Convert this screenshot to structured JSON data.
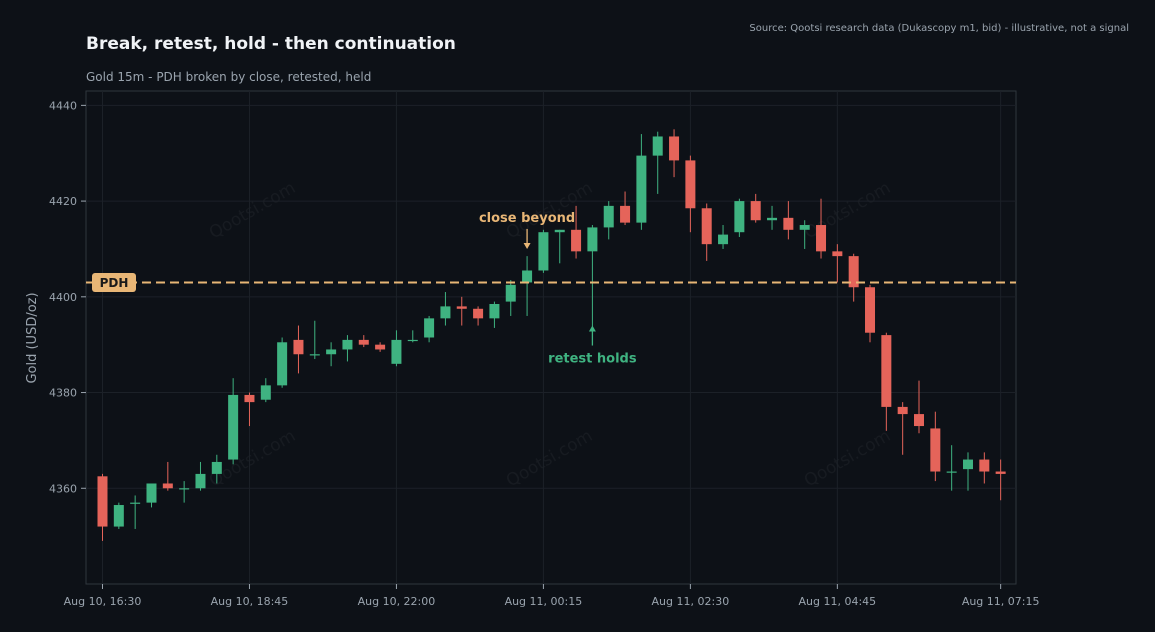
{
  "header": {
    "title": "Break, retest, hold - then continuation",
    "subtitle": "Gold 15m - PDH broken by close, retested, held",
    "source": "Source: Qootsi research data (Dukascopy m1, bid) - illustrative, not a signal"
  },
  "watermark": "Qootsi.com",
  "colors": {
    "background": "#0d1117",
    "up": "#3fb381",
    "down": "#e5645a",
    "pdh": "#e8b676",
    "grid": "#1c2128"
  },
  "chart_data": {
    "type": "candlestick",
    "ylabel": "Gold (USD/oz)",
    "ylim": [
      4340,
      4443
    ],
    "yticks": [
      4360,
      4380,
      4400,
      4420,
      4440
    ],
    "xticks": [
      {
        "index": 0,
        "label": "Aug 10, 16:30"
      },
      {
        "index": 9,
        "label": "Aug 10, 18:45"
      },
      {
        "index": 18,
        "label": "Aug 10, 22:00"
      },
      {
        "index": 27,
        "label": "Aug 11, 00:15"
      },
      {
        "index": 36,
        "label": "Aug 11, 02:30"
      },
      {
        "index": 45,
        "label": "Aug 11, 04:45"
      },
      {
        "index": 55,
        "label": "Aug 11, 07:15"
      }
    ],
    "grid": true,
    "pdh": {
      "label": "PDH",
      "value": 4403
    },
    "annotations": [
      {
        "text": "close beyond",
        "index": 26,
        "value": 4410,
        "direction": "down"
      },
      {
        "text": "retest holds",
        "index": 30,
        "value": 4394,
        "direction": "up"
      }
    ],
    "candles": [
      {
        "o": 4362.5,
        "h": 4363,
        "l": 4349,
        "c": 4352
      },
      {
        "o": 4352,
        "h": 4357,
        "l": 4351.5,
        "c": 4356.5
      },
      {
        "o": 4357,
        "h": 4358.5,
        "l": 4351.5,
        "c": 4357
      },
      {
        "o": 4357,
        "h": 4361,
        "l": 4356,
        "c": 4361
      },
      {
        "o": 4361,
        "h": 4365.5,
        "l": 4359.5,
        "c": 4360
      },
      {
        "o": 4360,
        "h": 4361.5,
        "l": 4357,
        "c": 4360
      },
      {
        "o": 4360,
        "h": 4365.5,
        "l": 4359.5,
        "c": 4363
      },
      {
        "o": 4363,
        "h": 4367,
        "l": 4361,
        "c": 4365.5
      },
      {
        "o": 4366,
        "h": 4383,
        "l": 4365,
        "c": 4379.5
      },
      {
        "o": 4379.5,
        "h": 4380,
        "l": 4373,
        "c": 4378
      },
      {
        "o": 4378.5,
        "h": 4383,
        "l": 4378,
        "c": 4381.5
      },
      {
        "o": 4381.5,
        "h": 4391.5,
        "l": 4381,
        "c": 4390.5
      },
      {
        "o": 4391,
        "h": 4394,
        "l": 4384,
        "c": 4388
      },
      {
        "o": 4388,
        "h": 4395,
        "l": 4387,
        "c": 4388
      },
      {
        "o": 4388,
        "h": 4390.5,
        "l": 4385.5,
        "c": 4389
      },
      {
        "o": 4389,
        "h": 4392,
        "l": 4386.5,
        "c": 4391
      },
      {
        "o": 4391,
        "h": 4392,
        "l": 4389.5,
        "c": 4390
      },
      {
        "o": 4390,
        "h": 4390.5,
        "l": 4388.5,
        "c": 4389
      },
      {
        "o": 4386,
        "h": 4393,
        "l": 4385.5,
        "c": 4391
      },
      {
        "o": 4391,
        "h": 4393,
        "l": 4390.5,
        "c": 4391
      },
      {
        "o": 4391.5,
        "h": 4396,
        "l": 4390.5,
        "c": 4395.5
      },
      {
        "o": 4395.5,
        "h": 4401,
        "l": 4394,
        "c": 4398
      },
      {
        "o": 4398,
        "h": 4400,
        "l": 4394,
        "c": 4397.5
      },
      {
        "o": 4397.5,
        "h": 4398,
        "l": 4394,
        "c": 4395.5
      },
      {
        "o": 4395.5,
        "h": 4399,
        "l": 4393.5,
        "c": 4398.5
      },
      {
        "o": 4399,
        "h": 4403.5,
        "l": 4396,
        "c": 4402.5
      },
      {
        "o": 4403,
        "h": 4408.5,
        "l": 4396,
        "c": 4405.5
      },
      {
        "o": 4405.5,
        "h": 4414,
        "l": 4405,
        "c": 4413.5
      },
      {
        "o": 4413.5,
        "h": 4414,
        "l": 4407,
        "c": 4414
      },
      {
        "o": 4414,
        "h": 4419,
        "l": 4408,
        "c": 4409.5
      },
      {
        "o": 4409.5,
        "h": 4415,
        "l": 4393,
        "c": 4414.5
      },
      {
        "o": 4414.5,
        "h": 4420,
        "l": 4412,
        "c": 4419
      },
      {
        "o": 4419,
        "h": 4422,
        "l": 4415,
        "c": 4415.5
      },
      {
        "o": 4415.5,
        "h": 4434,
        "l": 4414,
        "c": 4429.5
      },
      {
        "o": 4429.5,
        "h": 4434.5,
        "l": 4421.5,
        "c": 4433.5
      },
      {
        "o": 4433.5,
        "h": 4435,
        "l": 4425,
        "c": 4428.5
      },
      {
        "o": 4428.5,
        "h": 4429.5,
        "l": 4413.5,
        "c": 4418.5
      },
      {
        "o": 4418.5,
        "h": 4419.5,
        "l": 4407.5,
        "c": 4411
      },
      {
        "o": 4411,
        "h": 4415,
        "l": 4410,
        "c": 4413
      },
      {
        "o": 4413.5,
        "h": 4420.5,
        "l": 4412.5,
        "c": 4420
      },
      {
        "o": 4420,
        "h": 4421.5,
        "l": 4415.5,
        "c": 4416
      },
      {
        "o": 4416,
        "h": 4419,
        "l": 4414,
        "c": 4416.5
      },
      {
        "o": 4416.5,
        "h": 4420,
        "l": 4412,
        "c": 4414
      },
      {
        "o": 4414,
        "h": 4416,
        "l": 4410,
        "c": 4415
      },
      {
        "o": 4415,
        "h": 4420.5,
        "l": 4408,
        "c": 4409.5
      },
      {
        "o": 4409.5,
        "h": 4411,
        "l": 4403,
        "c": 4408.5
      },
      {
        "o": 4408.5,
        "h": 4409,
        "l": 4399,
        "c": 4402
      },
      {
        "o": 4402,
        "h": 4402.5,
        "l": 4390.5,
        "c": 4392.5
      },
      {
        "o": 4392,
        "h": 4392.5,
        "l": 4372,
        "c": 4377
      },
      {
        "o": 4377,
        "h": 4378,
        "l": 4367,
        "c": 4375.5
      },
      {
        "o": 4375.5,
        "h": 4382.5,
        "l": 4371.5,
        "c": 4373
      },
      {
        "o": 4372.5,
        "h": 4376,
        "l": 4361.5,
        "c": 4363.5
      },
      {
        "o": 4363.5,
        "h": 4369,
        "l": 4359.5,
        "c": 4363.5
      },
      {
        "o": 4364,
        "h": 4367.5,
        "l": 4359.5,
        "c": 4366
      },
      {
        "o": 4366,
        "h": 4367.5,
        "l": 4361,
        "c": 4363.5
      },
      {
        "o": 4363.5,
        "h": 4366,
        "l": 4357.5,
        "c": 4363
      }
    ]
  }
}
